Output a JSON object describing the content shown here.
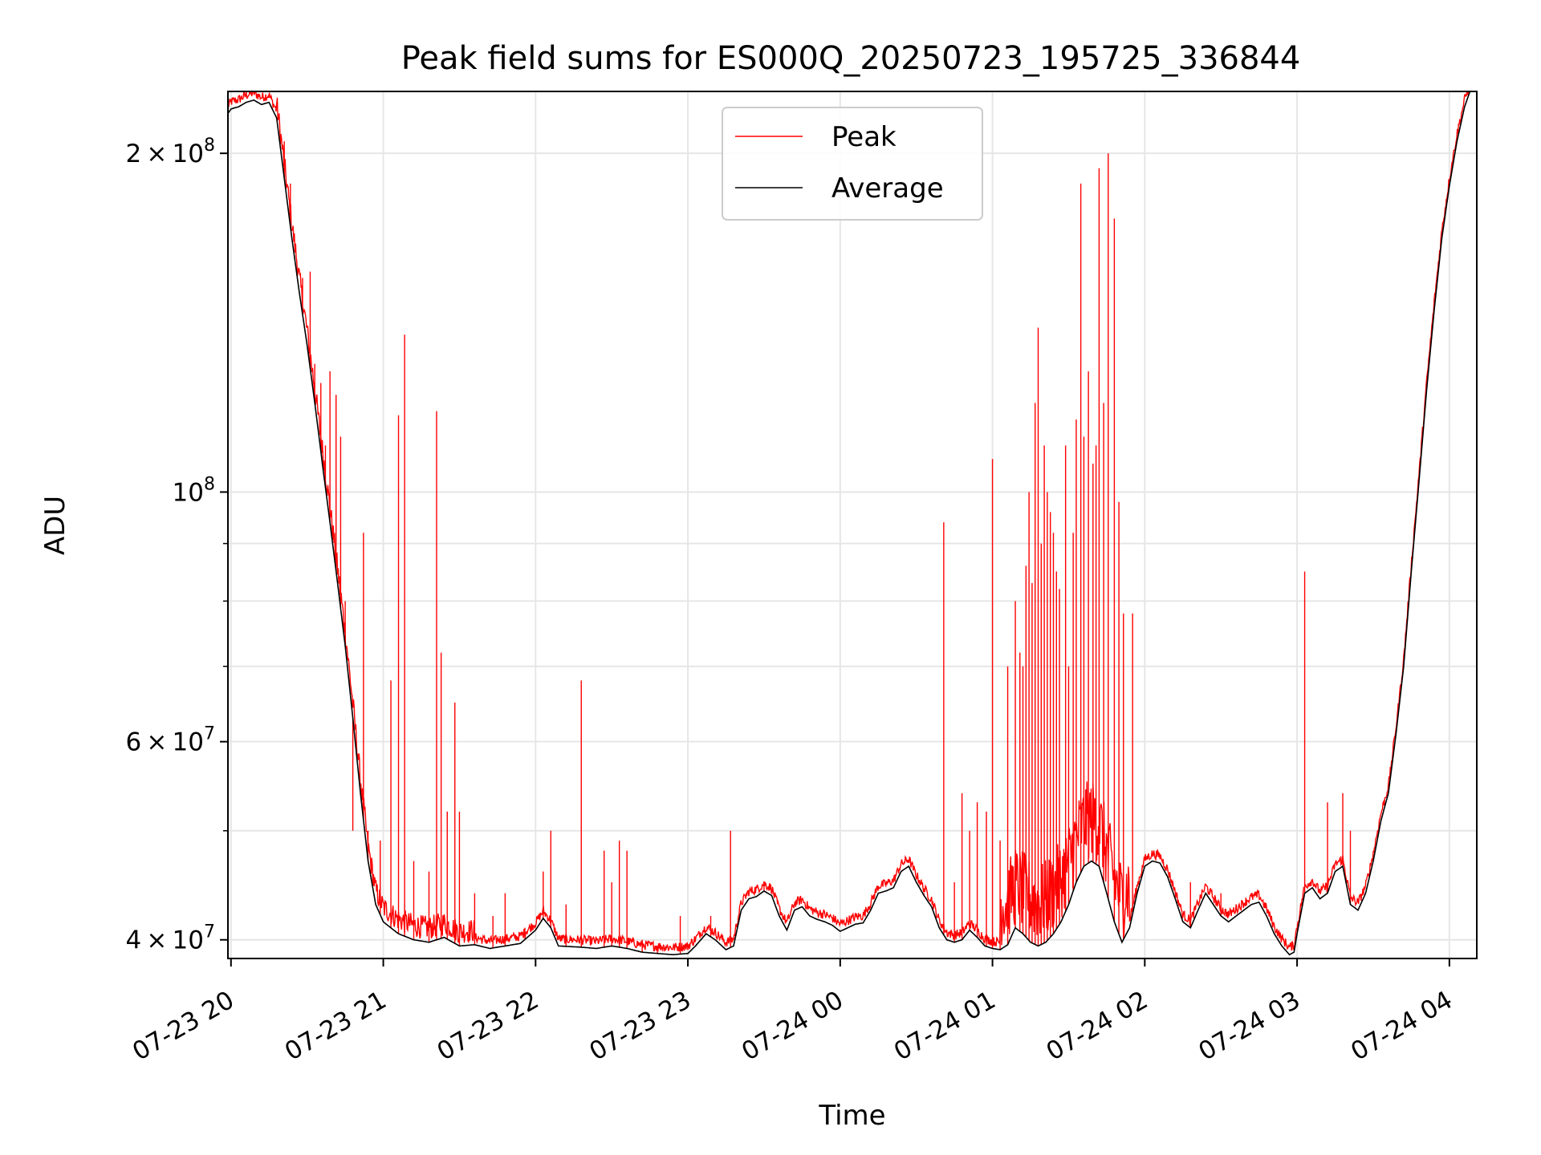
{
  "chart_data": {
    "type": "line",
    "title": "Peak field sums for ES000Q_20250723_195725_336844",
    "xlabel": "Time",
    "ylabel": "ADU",
    "x_range_hours": [
      19.98,
      28.18
    ],
    "y_scale": "log",
    "ylim": [
      38500000,
      227000000
    ],
    "grid": true,
    "legend_position": "upper-center",
    "x_ticks": [
      {
        "hour": 20,
        "label": "07-23 20"
      },
      {
        "hour": 21,
        "label": "07-23 21"
      },
      {
        "hour": 22,
        "label": "07-23 22"
      },
      {
        "hour": 23,
        "label": "07-23 23"
      },
      {
        "hour": 24,
        "label": "07-24 00"
      },
      {
        "hour": 25,
        "label": "07-24 01"
      },
      {
        "hour": 26,
        "label": "07-24 02"
      },
      {
        "hour": 27,
        "label": "07-24 03"
      },
      {
        "hour": 28,
        "label": "07-24 04"
      }
    ],
    "y_major_ticks": [
      {
        "value": 40000000,
        "mantissa": "4",
        "exponent": "7"
      },
      {
        "value": 60000000,
        "mantissa": "6",
        "exponent": "7"
      },
      {
        "value": 100000000,
        "mantissa": "",
        "exponent": "8"
      },
      {
        "value": 200000000,
        "mantissa": "2",
        "exponent": "8"
      }
    ],
    "y_minor_ticks": [
      50000000,
      70000000,
      80000000,
      90000000
    ],
    "series": [
      {
        "name": "Peak",
        "color": "#ff0000",
        "baseline_offset": 0.02,
        "spikes": [
          [
            20.35,
            205000000
          ],
          [
            20.39,
            188000000
          ],
          [
            20.47,
            155000000
          ],
          [
            20.52,
            157000000
          ],
          [
            20.55,
            130000000
          ],
          [
            20.59,
            125000000
          ],
          [
            20.62,
            110000000
          ],
          [
            20.65,
            128000000
          ],
          [
            20.69,
            122000000
          ],
          [
            20.72,
            112000000
          ],
          [
            20.75,
            80000000
          ],
          [
            20.8,
            50000000
          ],
          [
            20.87,
            92000000
          ],
          [
            20.9,
            50000000
          ],
          [
            20.98,
            49000000
          ],
          [
            21.05,
            68000000
          ],
          [
            21.1,
            117000000
          ],
          [
            21.14,
            138000000
          ],
          [
            21.2,
            47000000
          ],
          [
            21.3,
            46000000
          ],
          [
            21.35,
            118000000
          ],
          [
            21.38,
            72000000
          ],
          [
            21.42,
            52000000
          ],
          [
            21.47,
            65000000
          ],
          [
            21.5,
            52000000
          ],
          [
            21.6,
            44000000
          ],
          [
            21.72,
            42000000
          ],
          [
            21.8,
            44000000
          ],
          [
            21.93,
            41000000
          ],
          [
            22.05,
            46000000
          ],
          [
            22.1,
            50000000
          ],
          [
            22.2,
            43000000
          ],
          [
            22.3,
            68000000
          ],
          [
            22.45,
            48000000
          ],
          [
            22.5,
            45000000
          ],
          [
            22.55,
            49000000
          ],
          [
            22.6,
            48000000
          ],
          [
            22.7,
            40000000
          ],
          [
            22.8,
            39500000
          ],
          [
            22.95,
            42000000
          ],
          [
            23.15,
            42000000
          ],
          [
            23.28,
            50000000
          ],
          [
            23.5,
            45000000
          ],
          [
            24.55,
            44000000
          ],
          [
            24.68,
            94000000
          ],
          [
            24.75,
            45000000
          ],
          [
            24.8,
            54000000
          ],
          [
            24.85,
            50000000
          ],
          [
            24.9,
            53000000
          ],
          [
            24.96,
            52000000
          ],
          [
            25.0,
            107000000
          ],
          [
            25.05,
            49000000
          ],
          [
            25.1,
            70000000
          ],
          [
            25.15,
            80000000
          ],
          [
            25.18,
            72000000
          ],
          [
            25.2,
            70000000
          ],
          [
            25.22,
            86000000
          ],
          [
            25.24,
            100000000
          ],
          [
            25.26,
            83000000
          ],
          [
            25.28,
            120000000
          ],
          [
            25.3,
            140000000
          ],
          [
            25.32,
            90000000
          ],
          [
            25.34,
            110000000
          ],
          [
            25.36,
            100000000
          ],
          [
            25.38,
            96000000
          ],
          [
            25.4,
            92000000
          ],
          [
            25.42,
            85000000
          ],
          [
            25.44,
            82000000
          ],
          [
            25.48,
            110000000
          ],
          [
            25.5,
            70000000
          ],
          [
            25.53,
            92000000
          ],
          [
            25.55,
            116000000
          ],
          [
            25.58,
            188000000
          ],
          [
            25.6,
            112000000
          ],
          [
            25.63,
            128000000
          ],
          [
            25.66,
            106000000
          ],
          [
            25.68,
            110000000
          ],
          [
            25.7,
            194000000
          ],
          [
            25.73,
            120000000
          ],
          [
            25.76,
            200000000
          ],
          [
            25.8,
            175000000
          ],
          [
            25.83,
            98000000
          ],
          [
            25.86,
            78000000
          ],
          [
            25.92,
            78000000
          ],
          [
            26.3,
            45000000
          ],
          [
            26.5,
            44000000
          ],
          [
            27.05,
            85000000
          ],
          [
            27.2,
            53000000
          ],
          [
            27.3,
            54000000
          ],
          [
            27.35,
            50000000
          ]
        ]
      },
      {
        "name": "Average",
        "color": "#000000",
        "points": [
          [
            19.98,
            217000000
          ],
          [
            20.0,
            219000000
          ],
          [
            20.05,
            220000000
          ],
          [
            20.1,
            222000000
          ],
          [
            20.15,
            223000000
          ],
          [
            20.2,
            221000000
          ],
          [
            20.25,
            222000000
          ],
          [
            20.3,
            215000000
          ],
          [
            20.35,
            190000000
          ],
          [
            20.4,
            168000000
          ],
          [
            20.45,
            150000000
          ],
          [
            20.5,
            135000000
          ],
          [
            20.55,
            120000000
          ],
          [
            20.6,
            106000000
          ],
          [
            20.65,
            94000000
          ],
          [
            20.7,
            83000000
          ],
          [
            20.75,
            73000000
          ],
          [
            20.8,
            63000000
          ],
          [
            20.85,
            54000000
          ],
          [
            20.9,
            47000000
          ],
          [
            20.95,
            43000000
          ],
          [
            21.0,
            41500000
          ],
          [
            21.1,
            40500000
          ],
          [
            21.2,
            40000000
          ],
          [
            21.3,
            39800000
          ],
          [
            21.4,
            40200000
          ],
          [
            21.5,
            39500000
          ],
          [
            21.6,
            39600000
          ],
          [
            21.7,
            39300000
          ],
          [
            21.8,
            39500000
          ],
          [
            21.9,
            39700000
          ],
          [
            22.0,
            40800000
          ],
          [
            22.05,
            41800000
          ],
          [
            22.1,
            41000000
          ],
          [
            22.15,
            39500000
          ],
          [
            22.3,
            39400000
          ],
          [
            22.4,
            39300000
          ],
          [
            22.5,
            39500000
          ],
          [
            22.6,
            39300000
          ],
          [
            22.7,
            39000000
          ],
          [
            22.8,
            38900000
          ],
          [
            22.9,
            38800000
          ],
          [
            23.0,
            38900000
          ],
          [
            23.05,
            39500000
          ],
          [
            23.12,
            40500000
          ],
          [
            23.18,
            40000000
          ],
          [
            23.25,
            39200000
          ],
          [
            23.3,
            39500000
          ],
          [
            23.35,
            42500000
          ],
          [
            23.4,
            43500000
          ],
          [
            23.45,
            43700000
          ],
          [
            23.5,
            44200000
          ],
          [
            23.55,
            43800000
          ],
          [
            23.6,
            42000000
          ],
          [
            23.65,
            40800000
          ],
          [
            23.7,
            42500000
          ],
          [
            23.75,
            42800000
          ],
          [
            23.8,
            42000000
          ],
          [
            23.85,
            41700000
          ],
          [
            23.9,
            41500000
          ],
          [
            23.95,
            41200000
          ],
          [
            24.0,
            40700000
          ],
          [
            24.05,
            41000000
          ],
          [
            24.1,
            41300000
          ],
          [
            24.15,
            41400000
          ],
          [
            24.2,
            42500000
          ],
          [
            24.25,
            44000000
          ],
          [
            24.3,
            44200000
          ],
          [
            24.35,
            44500000
          ],
          [
            24.4,
            46000000
          ],
          [
            24.45,
            46500000
          ],
          [
            24.5,
            45000000
          ],
          [
            24.55,
            43800000
          ],
          [
            24.6,
            42800000
          ],
          [
            24.65,
            41000000
          ],
          [
            24.7,
            40000000
          ],
          [
            24.75,
            39800000
          ],
          [
            24.8,
            40000000
          ],
          [
            24.85,
            40800000
          ],
          [
            24.9,
            40200000
          ],
          [
            24.95,
            39500000
          ],
          [
            25.0,
            39300000
          ],
          [
            25.05,
            39200000
          ],
          [
            25.1,
            39600000
          ],
          [
            25.15,
            41000000
          ],
          [
            25.2,
            40500000
          ],
          [
            25.25,
            39800000
          ],
          [
            25.3,
            39500000
          ],
          [
            25.35,
            39800000
          ],
          [
            25.4,
            40500000
          ],
          [
            25.45,
            41500000
          ],
          [
            25.5,
            43000000
          ],
          [
            25.55,
            45000000
          ],
          [
            25.6,
            46500000
          ],
          [
            25.65,
            47000000
          ],
          [
            25.7,
            46500000
          ],
          [
            25.75,
            44000000
          ],
          [
            25.8,
            41500000
          ],
          [
            25.85,
            39800000
          ],
          [
            25.9,
            41000000
          ],
          [
            25.95,
            44000000
          ],
          [
            26.0,
            46500000
          ],
          [
            26.05,
            47000000
          ],
          [
            26.1,
            46800000
          ],
          [
            26.15,
            45500000
          ],
          [
            26.2,
            43500000
          ],
          [
            26.25,
            41500000
          ],
          [
            26.3,
            41000000
          ],
          [
            26.35,
            42500000
          ],
          [
            26.4,
            44000000
          ],
          [
            26.45,
            43000000
          ],
          [
            26.5,
            42000000
          ],
          [
            26.55,
            41500000
          ],
          [
            26.6,
            42000000
          ],
          [
            26.65,
            42500000
          ],
          [
            26.7,
            43000000
          ],
          [
            26.75,
            43200000
          ],
          [
            26.8,
            42000000
          ],
          [
            26.85,
            40500000
          ],
          [
            26.9,
            39500000
          ],
          [
            26.95,
            38800000
          ],
          [
            26.98,
            39000000
          ],
          [
            27.0,
            40500000
          ],
          [
            27.05,
            44000000
          ],
          [
            27.1,
            44500000
          ],
          [
            27.15,
            43500000
          ],
          [
            27.2,
            44000000
          ],
          [
            27.25,
            46000000
          ],
          [
            27.3,
            46500000
          ],
          [
            27.35,
            43000000
          ],
          [
            27.4,
            42500000
          ],
          [
            27.45,
            44000000
          ],
          [
            27.5,
            47000000
          ],
          [
            27.55,
            51000000
          ],
          [
            27.6,
            54000000
          ],
          [
            27.65,
            61000000
          ],
          [
            27.7,
            70000000
          ],
          [
            27.75,
            85000000
          ],
          [
            27.8,
            102000000
          ],
          [
            27.85,
            123000000
          ],
          [
            27.9,
            145000000
          ],
          [
            27.95,
            168000000
          ],
          [
            28.0,
            187000000
          ],
          [
            28.05,
            205000000
          ],
          [
            28.1,
            220000000
          ],
          [
            28.15,
            230000000
          ]
        ]
      }
    ]
  }
}
